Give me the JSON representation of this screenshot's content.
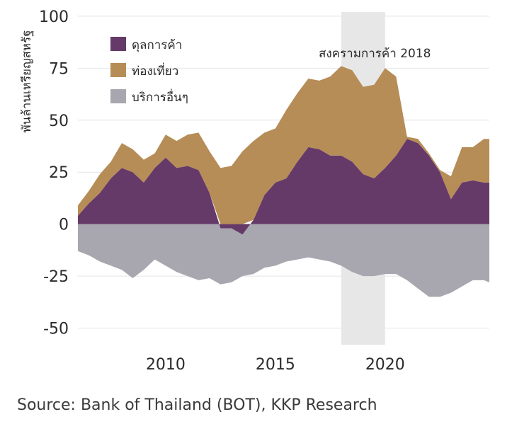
{
  "chart_data": {
    "type": "area",
    "ylabel": "พันล้านเหรียญสหรัฐ",
    "ylim": [
      -58,
      102
    ],
    "xlim": [
      2006.0,
      2024.75
    ],
    "yticks": [
      -50,
      -25,
      0,
      25,
      50,
      75,
      100
    ],
    "ytick_labels": [
      "-50",
      "-25",
      "0",
      "25",
      "50",
      "75",
      "100"
    ],
    "xticks": [
      2010,
      2015,
      2020
    ],
    "xtick_labels": [
      "2010",
      "2015",
      "2020"
    ],
    "grid": true,
    "legend_position": "top-left",
    "annotation": {
      "label": "สงครามการค้า 2018",
      "x_start": 2018.0,
      "x_end": 2020.0
    },
    "x": [
      2006.0,
      2006.5,
      2007.0,
      2007.5,
      2008.0,
      2008.5,
      2009.0,
      2009.5,
      2010.0,
      2010.5,
      2011.0,
      2011.5,
      2012.0,
      2012.5,
      2013.0,
      2013.5,
      2014.0,
      2014.5,
      2015.0,
      2015.5,
      2016.0,
      2016.5,
      2017.0,
      2017.5,
      2018.0,
      2018.5,
      2019.0,
      2019.5,
      2020.0,
      2020.5,
      2021.0,
      2021.5,
      2022.0,
      2022.5,
      2023.0,
      2023.5,
      2024.0,
      2024.5,
      2024.75
    ],
    "series": [
      {
        "name": "ดุลการค้า",
        "color": "#653a69",
        "values": [
          4,
          10,
          15,
          22,
          27,
          25,
          20,
          27,
          32,
          27,
          28,
          26,
          15,
          -2,
          -2,
          -5,
          2,
          14,
          20,
          22,
          30,
          37,
          36,
          33,
          33,
          30,
          24,
          22,
          27,
          33,
          41,
          39,
          33,
          25,
          12,
          20,
          21,
          20,
          20
        ]
      },
      {
        "name": "ท่องเที่ยว",
        "color": "#b68d57",
        "values": [
          5,
          6,
          9,
          8,
          12,
          11,
          11,
          7,
          11,
          13,
          15,
          18,
          20,
          27,
          28,
          35,
          38,
          30,
          26,
          33,
          33,
          33,
          33,
          38,
          43,
          44,
          42,
          45,
          48,
          38,
          1,
          2,
          1,
          1,
          11,
          17,
          16,
          21,
          21
        ]
      },
      {
        "name": "บริการอื่นๆ",
        "color": "#a8a7b0",
        "values": [
          -13,
          -15,
          -18,
          -20,
          -22,
          -26,
          -22,
          -17,
          -20,
          -23,
          -25,
          -27,
          -26,
          -29,
          -28,
          -25,
          -24,
          -21,
          -20,
          -18,
          -17,
          -16,
          -17,
          -18,
          -20,
          -23,
          -25,
          -25,
          -24,
          -24,
          -27,
          -31,
          -35,
          -35,
          -33,
          -30,
          -27,
          -27,
          -28
        ]
      }
    ]
  },
  "source": "Source: Bank of Thailand (BOT), KKP Research"
}
